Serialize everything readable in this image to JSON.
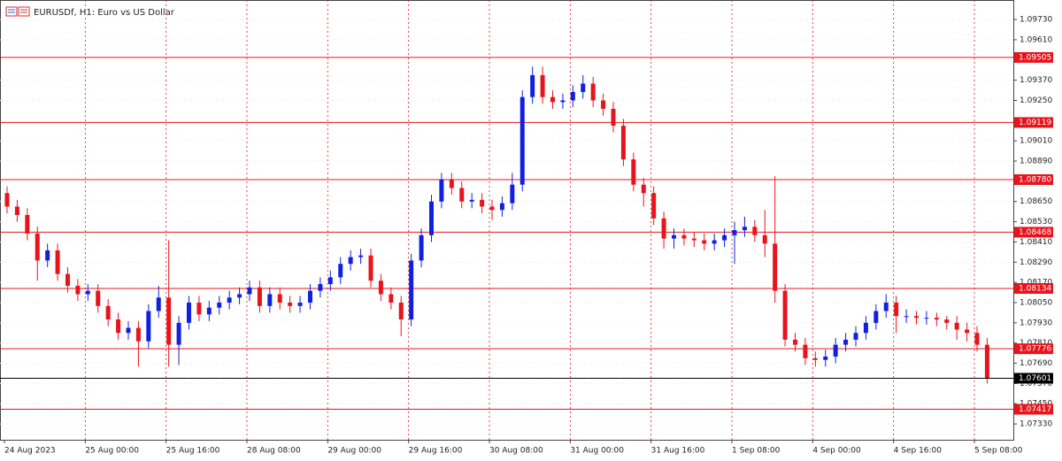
{
  "chart_data": {
    "type": "candlestick",
    "title": "EURUSDf, H1:  Euro vs US Dollar",
    "categories": [
      "24 Aug 2023",
      null,
      null,
      null,
      null,
      null,
      null,
      null,
      "25 Aug 00:00",
      null,
      null,
      null,
      null,
      null,
      null,
      null,
      "25 Aug 16:00",
      null,
      null,
      null,
      null,
      null,
      null,
      null,
      "28 Aug 08:00",
      null,
      null,
      null,
      null,
      null,
      null,
      null,
      "29 Aug 00:00",
      null,
      null,
      null,
      null,
      null,
      null,
      null,
      "29 Aug 16:00",
      null,
      null,
      null,
      null,
      null,
      null,
      null,
      "30 Aug 08:00",
      null,
      null,
      null,
      null,
      null,
      null,
      null,
      "31 Aug 00:00",
      null,
      null,
      null,
      null,
      null,
      null,
      null,
      "31 Aug 16:00",
      null,
      null,
      null,
      null,
      null,
      null,
      null,
      "1 Sep 08:00",
      null,
      null,
      null,
      null,
      null,
      null,
      null,
      "4 Sep 00:00",
      null,
      null,
      null,
      null,
      null,
      null,
      null,
      "4 Sep 16:00",
      null,
      null,
      null,
      null,
      null,
      null,
      null,
      "5 Sep 08:00",
      null
    ],
    "open": [
      1.087,
      1.0862,
      1.0857,
      1.0846,
      1.083,
      1.0836,
      1.0822,
      1.0815,
      1.081,
      1.0812,
      1.0803,
      1.0795,
      1.0787,
      1.079,
      1.0782,
      1.08,
      1.0808,
      1.078,
      1.0793,
      1.0805,
      1.0798,
      1.0802,
      1.0805,
      1.0808,
      1.081,
      1.0814,
      1.0803,
      1.081,
      1.0805,
      1.0803,
      1.0805,
      1.0812,
      1.0816,
      1.082,
      1.0828,
      1.0832,
      1.0833,
      1.0818,
      1.081,
      1.0805,
      1.0795,
      1.083,
      1.0845,
      1.0865,
      1.0878,
      1.0873,
      1.0865,
      1.0866,
      1.0862,
      1.086,
      1.0864,
      1.0875,
      1.0927,
      1.094,
      1.0927,
      1.0924,
      1.0925,
      1.093,
      1.0935,
      1.0925,
      1.092,
      1.091,
      1.089,
      1.0875,
      1.087,
      1.0855,
      1.0843,
      1.0845,
      1.0843,
      1.0842,
      1.084,
      1.0842,
      1.0845,
      1.0848,
      1.085,
      1.0845,
      1.084,
      1.0812,
      1.0783,
      1.078,
      1.0772,
      1.0771,
      1.0773,
      1.078,
      1.0783,
      1.0787,
      1.0793,
      1.08,
      1.0805,
      1.0797,
      1.0797,
      1.0796,
      1.0796,
      1.0795,
      1.0793,
      1.0789,
      1.0787,
      1.078
    ],
    "high": [
      1.0874,
      1.0866,
      1.0861,
      1.085,
      1.084,
      1.084,
      1.0826,
      1.0819,
      1.0816,
      1.0816,
      1.0807,
      1.0799,
      1.0794,
      1.0794,
      1.0804,
      1.0815,
      1.0842,
      1.0797,
      1.0809,
      1.0809,
      1.0806,
      1.0809,
      1.0812,
      1.0814,
      1.0818,
      1.0818,
      1.0814,
      1.0814,
      1.0809,
      1.0809,
      1.0816,
      1.082,
      1.0824,
      1.0832,
      1.0836,
      1.0837,
      1.0837,
      1.0822,
      1.0814,
      1.0809,
      1.0834,
      1.0849,
      1.0869,
      1.0882,
      1.0882,
      1.0877,
      1.087,
      1.087,
      1.0866,
      1.0868,
      1.0882,
      1.0931,
      1.0945,
      1.0945,
      1.0931,
      1.0929,
      1.0934,
      1.094,
      1.0939,
      1.0929,
      1.0924,
      1.0914,
      1.0894,
      1.0879,
      1.0874,
      1.0859,
      1.0849,
      1.0849,
      1.0847,
      1.0846,
      1.0846,
      1.0849,
      1.0853,
      1.0856,
      1.0854,
      1.086,
      1.088,
      1.0816,
      1.0787,
      1.0784,
      1.0776,
      1.0777,
      1.0784,
      1.0787,
      1.0791,
      1.0797,
      1.0804,
      1.081,
      1.0809,
      1.0801,
      1.08,
      1.08,
      1.0799,
      1.0797,
      1.0797,
      1.0793,
      1.0791,
      1.0784
    ],
    "low": [
      1.0858,
      1.0853,
      1.0842,
      1.0818,
      1.0826,
      1.0818,
      1.0811,
      1.0806,
      1.0806,
      1.0799,
      1.0791,
      1.0783,
      1.0783,
      1.0767,
      1.0778,
      1.0796,
      1.0767,
      1.0768,
      1.0789,
      1.0794,
      1.0794,
      1.0798,
      1.0801,
      1.0804,
      1.0806,
      1.0799,
      1.0799,
      1.0801,
      1.0799,
      1.0799,
      1.0801,
      1.0808,
      1.0812,
      1.0816,
      1.0824,
      1.0828,
      1.0814,
      1.0806,
      1.0801,
      1.0785,
      1.0791,
      1.0826,
      1.0841,
      1.0861,
      1.0869,
      1.0861,
      1.0861,
      1.0858,
      1.0854,
      1.0856,
      1.086,
      1.0871,
      1.0923,
      1.0923,
      1.092,
      1.092,
      1.0921,
      1.0926,
      1.0921,
      1.0916,
      1.0906,
      1.0886,
      1.0871,
      1.0862,
      1.0851,
      1.0837,
      1.0837,
      1.0839,
      1.0838,
      1.0836,
      1.0836,
      1.0838,
      1.0828,
      1.0844,
      1.0841,
      1.0832,
      1.0805,
      1.0779,
      1.0776,
      1.0768,
      1.0767,
      1.0767,
      1.0769,
      1.0776,
      1.0779,
      1.0783,
      1.0789,
      1.0796,
      1.0787,
      1.0793,
      1.0792,
      1.0792,
      1.0791,
      1.0789,
      1.0783,
      1.0782,
      1.0776,
      1.0757
    ],
    "close": [
      1.0862,
      1.0857,
      1.0846,
      1.083,
      1.0836,
      1.0822,
      1.0815,
      1.081,
      1.0812,
      1.0803,
      1.0795,
      1.0787,
      1.079,
      1.0782,
      1.08,
      1.0808,
      1.078,
      1.0793,
      1.0805,
      1.0798,
      1.0802,
      1.0805,
      1.0808,
      1.081,
      1.0814,
      1.0803,
      1.081,
      1.0805,
      1.0803,
      1.0805,
      1.0812,
      1.0816,
      1.082,
      1.0828,
      1.0832,
      1.0833,
      1.0818,
      1.081,
      1.0805,
      1.0795,
      1.083,
      1.0845,
      1.0865,
      1.0878,
      1.0873,
      1.0865,
      1.0866,
      1.0862,
      1.086,
      1.0864,
      1.0875,
      1.0927,
      1.094,
      1.0927,
      1.0924,
      1.0925,
      1.093,
      1.0935,
      1.0925,
      1.092,
      1.091,
      1.089,
      1.0875,
      1.087,
      1.0855,
      1.0843,
      1.0845,
      1.0843,
      1.0842,
      1.084,
      1.0842,
      1.0845,
      1.0848,
      1.085,
      1.0845,
      1.084,
      1.0812,
      1.0783,
      1.078,
      1.0772,
      1.0771,
      1.0773,
      1.078,
      1.0783,
      1.0787,
      1.0793,
      1.08,
      1.0805,
      1.0797,
      1.0797,
      1.0796,
      1.0796,
      1.0795,
      1.0793,
      1.0789,
      1.0787,
      1.078,
      1.076
    ],
    "up_color": "#1020e0",
    "down_color": "#e8141c",
    "ylim": [
      1.07236,
      1.09846
    ],
    "yticks": [
      {
        "value": 1.0973,
        "label": "1.09730"
      },
      {
        "value": 1.0961,
        "label": "1.09610"
      },
      {
        "value": 1.0937,
        "label": "1.09370"
      },
      {
        "value": 1.0925,
        "label": "1.09250"
      },
      {
        "value": 1.0901,
        "label": "1.09010"
      },
      {
        "value": 1.0889,
        "label": "1.08890"
      },
      {
        "value": 1.0865,
        "label": "1.08650"
      },
      {
        "value": 1.0853,
        "label": "1.08530"
      },
      {
        "value": 1.0841,
        "label": "1.08410"
      },
      {
        "value": 1.0829,
        "label": "1.08290"
      },
      {
        "value": 1.0817,
        "label": "1.08170"
      },
      {
        "value": 1.0805,
        "label": "1.08050"
      },
      {
        "value": 1.0793,
        "label": "1.07930"
      },
      {
        "value": 1.0781,
        "label": "1.07810"
      },
      {
        "value": 1.0769,
        "label": "1.07690"
      },
      {
        "value": 1.0757,
        "label": "1.07570"
      },
      {
        "value": 1.0745,
        "label": "1.07450"
      },
      {
        "value": 1.0733,
        "label": "1.07330"
      }
    ],
    "levels": [
      {
        "value": 1.09505,
        "label": "1.09505"
      },
      {
        "value": 1.09119,
        "label": "1.09119"
      },
      {
        "value": 1.0878,
        "label": "1.08780"
      },
      {
        "value": 1.08468,
        "label": "1.08468"
      },
      {
        "value": 1.08134,
        "label": "1.08134"
      },
      {
        "value": 1.07776,
        "label": "1.07776"
      },
      {
        "value": 1.07417,
        "label": "1.07417"
      }
    ],
    "level_color": "#e8141c",
    "current_price": {
      "value": 1.07601,
      "label": "1.07601"
    },
    "current_color": "#000000",
    "grid": true
  }
}
